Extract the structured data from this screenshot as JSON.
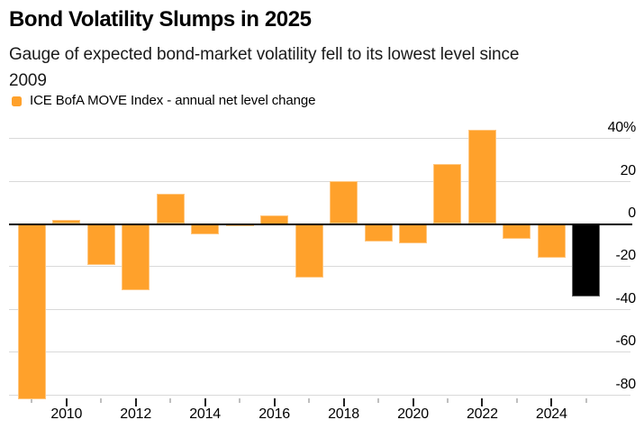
{
  "header": {
    "title": "Bond Volatility Slumps in 2025",
    "subtitle": "Gauge of expected bond-market volatility fell to its lowest level since 2009"
  },
  "legend": {
    "label": "ICE BofA MOVE Index - annual net level change"
  },
  "chart_data": {
    "type": "bar",
    "title": "Bond Volatility Slumps in 2025",
    "subtitle": "Gauge of expected bond-market volatility fell to its lowest level since 2009",
    "series": [
      {
        "name": "ICE BofA MOVE Index - annual net level change",
        "x": [
          2009,
          2010,
          2011,
          2012,
          2013,
          2014,
          2015,
          2016,
          2017,
          2018,
          2019,
          2020,
          2021,
          2022,
          2023,
          2024,
          2025
        ],
        "values": [
          -82,
          2,
          -19,
          -31,
          14,
          -5,
          -1,
          4,
          -25,
          20,
          -8,
          -9,
          28,
          44,
          -7,
          -16,
          -34
        ]
      }
    ],
    "highlight_year": 2025,
    "xlabel": "",
    "ylabel": "",
    "ylim": [
      -88,
      46
    ],
    "grid": "horizontal",
    "legend_position": "top-left",
    "ytick_values": [
      40,
      20,
      0,
      -20,
      -40,
      -60,
      -80
    ],
    "ytick_labels": [
      "40%",
      "20",
      "0",
      "-20",
      "-40",
      "-60",
      "-80"
    ],
    "xtick_years": [
      2010,
      2012,
      2014,
      2016,
      2018,
      2020,
      2022,
      2024
    ],
    "colors": {
      "bar": "#FFA12B",
      "highlight": "#000000",
      "gridline": "#D9D9D9",
      "zero_line": "#000000",
      "text": "#000000",
      "major_tick": "#222222",
      "minor_tick": "#BFBFBF"
    }
  }
}
